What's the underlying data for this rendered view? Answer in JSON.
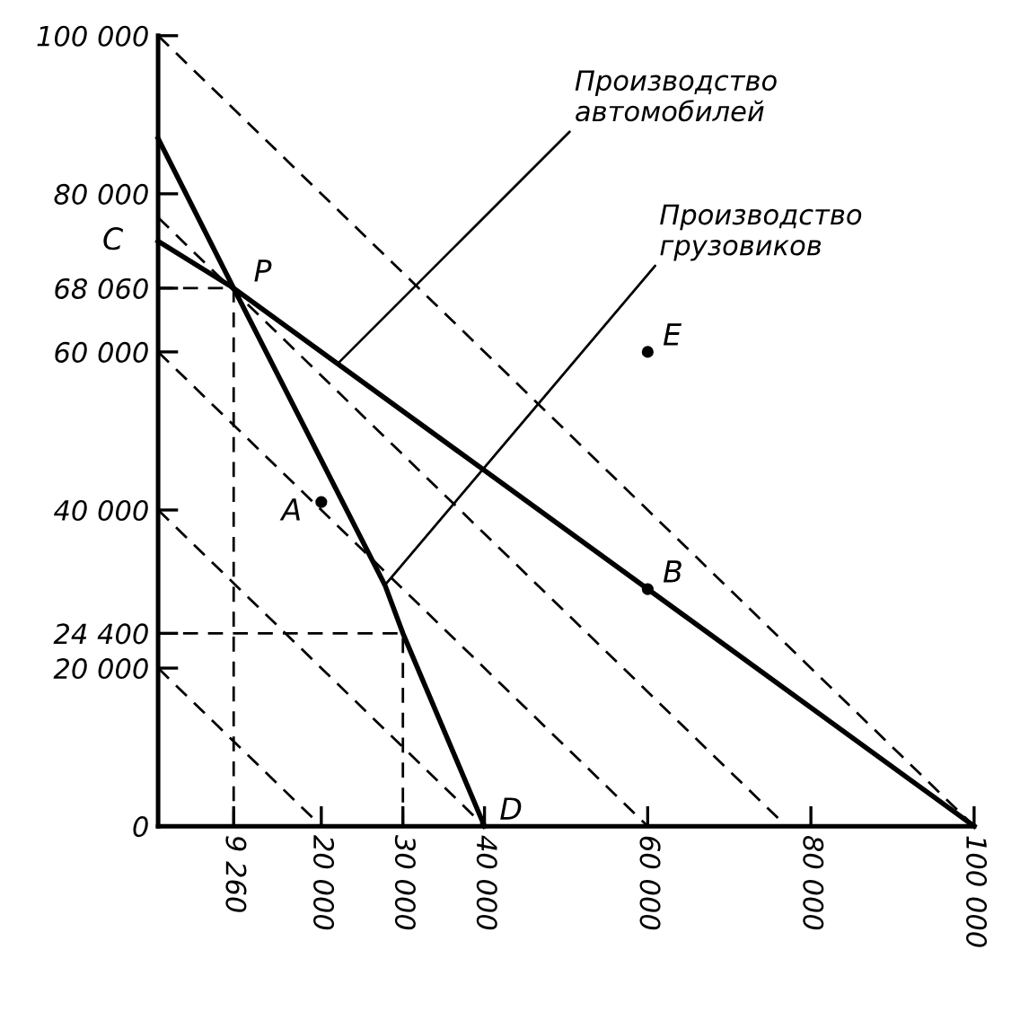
{
  "chart_data": {
    "type": "line",
    "xlim": [
      0,
      100000
    ],
    "ylim": [
      0,
      100000
    ],
    "xticks": [
      {
        "value": 0,
        "label": null
      },
      {
        "value": 9260,
        "label": "9 260"
      },
      {
        "value": 20000,
        "label": "20 000"
      },
      {
        "value": 30000,
        "label": "30 000"
      },
      {
        "value": 40000,
        "label": "40 000"
      },
      {
        "value": 60000,
        "label": "60 000"
      },
      {
        "value": 80000,
        "label": "80 000"
      },
      {
        "value": 100000,
        "label": "100 000"
      }
    ],
    "yticks": [
      {
        "value": 0,
        "label": "0"
      },
      {
        "value": 20000,
        "label": "20 000"
      },
      {
        "value": 24400,
        "label": "24 400"
      },
      {
        "value": 40000,
        "label": "40 000"
      },
      {
        "value": 60000,
        "label": "60 000"
      },
      {
        "value": 68060,
        "label": "68 060"
      },
      {
        "value": 80000,
        "label": "80 000"
      },
      {
        "value": 100000,
        "label": "100 000"
      }
    ],
    "grid": false,
    "legend": false,
    "marker": "none",
    "series": [
      {
        "color": "#000000",
        "line_style": "solid",
        "x": [
          0,
          9260,
          27800,
          30000,
          40000
        ],
        "values": [
          87000,
          68060,
          30500,
          24400,
          0
        ]
      },
      {
        "color": "#000000",
        "line_style": "solid",
        "x": [
          0,
          9260,
          100000
        ],
        "values": [
          74000,
          68060,
          0
        ]
      },
      {
        "color": "#000000",
        "line_style": "dashed",
        "x": [
          0,
          100000
        ],
        "values": [
          100000,
          0
        ]
      },
      {
        "color": "#000000",
        "line_style": "dashed",
        "x": [
          0,
          77000
        ],
        "values": [
          77000,
          0
        ]
      },
      {
        "color": "#000000",
        "line_style": "dashed",
        "x": [
          0,
          60000
        ],
        "values": [
          60000,
          0
        ]
      },
      {
        "color": "#000000",
        "line_style": "dashed",
        "x": [
          0,
          40000
        ],
        "values": [
          40000,
          0
        ]
      },
      {
        "color": "#000000",
        "line_style": "dashed",
        "x": [
          0,
          20000
        ],
        "values": [
          20000,
          0
        ]
      },
      {
        "color": "#000000",
        "line_style": "dashed",
        "x": [
          0,
          9260,
          9260
        ],
        "values": [
          68060,
          68060,
          0
        ]
      },
      {
        "color": "#000000",
        "line_style": "dashed",
        "x": [
          0,
          30000,
          30000
        ],
        "values": [
          24400,
          24400,
          0
        ]
      },
      {
        "type": "scatter",
        "marker": "circle",
        "color": "#000000",
        "x": [
          20000,
          60000,
          60000
        ],
        "values": [
          41000,
          30000,
          60000
        ]
      }
    ],
    "annotations": [
      {
        "text": "Производство\nавтомобилей",
        "x": 22000,
        "y": 58500
      },
      {
        "text": "Производство\nгрузовиков",
        "x": 27800,
        "y": 30500
      },
      {
        "text": "C",
        "x": 0,
        "y": 74000
      },
      {
        "text": "P",
        "x": 9260,
        "y": 68060
      },
      {
        "text": "A",
        "x": 20000,
        "y": 41000
      },
      {
        "text": "B",
        "x": 60000,
        "y": 30000
      },
      {
        "text": "E",
        "x": 60000,
        "y": 60000
      },
      {
        "text": "D",
        "x": 40000,
        "y": 0
      }
    ]
  }
}
